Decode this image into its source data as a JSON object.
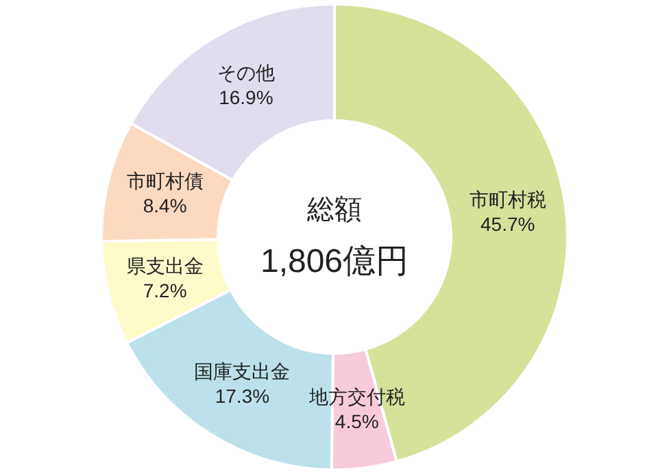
{
  "chart_data": {
    "type": "donut",
    "categories": [
      "市町村税",
      "地方交付税",
      "国庫支出金",
      "県支出金",
      "市町村債",
      "その他"
    ],
    "values": [
      45.7,
      4.5,
      17.3,
      7.2,
      8.4,
      16.9
    ],
    "value_labels": [
      "45.7%",
      "4.5%",
      "17.3%",
      "7.2%",
      "8.4%",
      "16.9%"
    ],
    "colors": [
      "#d4e29a",
      "#f8cadb",
      "#bde1ea",
      "#fefbcb",
      "#fcd9bf",
      "#e1ddee"
    ],
    "annotations": [
      "総額",
      "1,806億円"
    ],
    "legend": false
  }
}
